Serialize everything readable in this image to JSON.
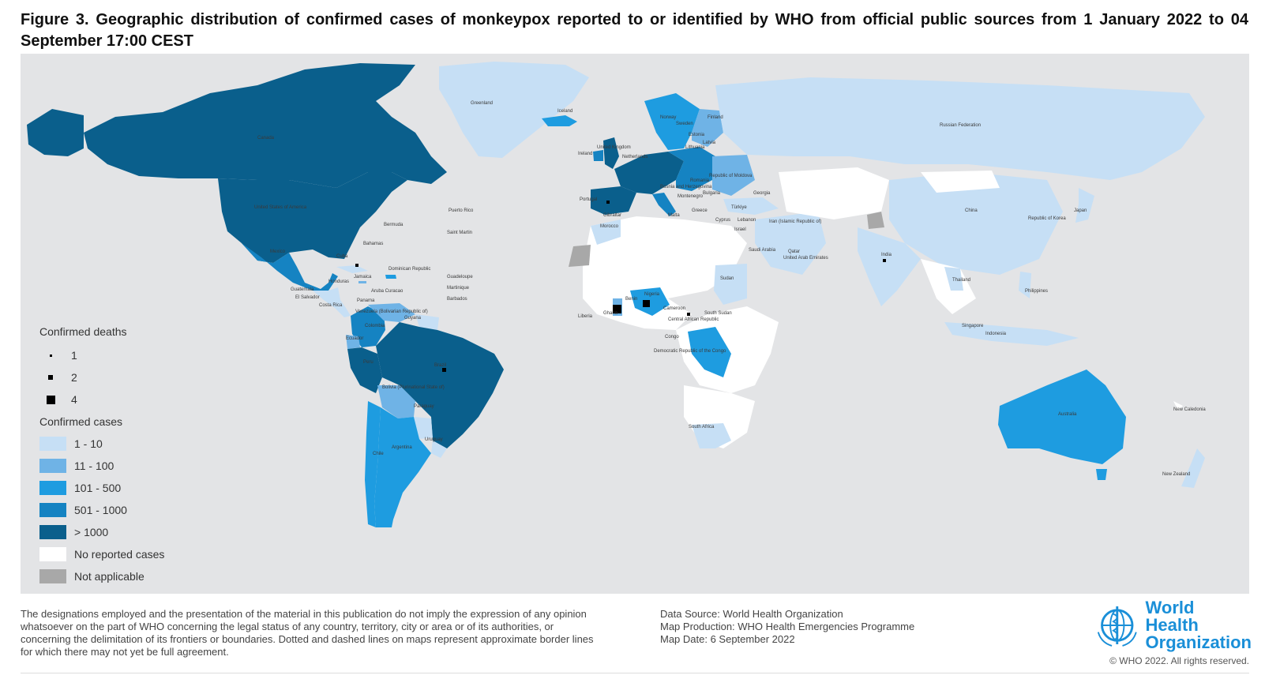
{
  "title": "Figure 3. Geographic distribution of confirmed cases of monkeypox reported to or identified by WHO from official public sources from 1 January 2022 to 04 September 17:00 CEST",
  "colors": {
    "ocean": "#e3e4e6",
    "no_cases": "#ffffff",
    "not_applicable": "#a8a8a8",
    "c1_10": "#c6dff5",
    "c11_100": "#6fb3e6",
    "c101_500": "#1e9ce0",
    "c501_1000": "#1583c2",
    "c_gt_1000": "#0a5f8c"
  },
  "legend": {
    "deaths_heading": "Confirmed deaths",
    "deaths": [
      {
        "label": "1",
        "size": "small"
      },
      {
        "label": "2",
        "size": "medium"
      },
      {
        "label": "4",
        "size": "large"
      }
    ],
    "cases_heading": "Confirmed cases",
    "cases": [
      {
        "label": "1 - 10",
        "color": "#c6dff5"
      },
      {
        "label": "11 - 100",
        "color": "#6fb3e6"
      },
      {
        "label": "101 - 500",
        "color": "#1e9ce0"
      },
      {
        "label": "501 - 1000",
        "color": "#1583c2"
      },
      {
        "label": "> 1000",
        "color": "#0a5f8c"
      },
      {
        "label": "No reported cases",
        "color": "#ffffff"
      },
      {
        "label": "Not applicable",
        "color": "#a8a8a8"
      }
    ]
  },
  "country_labels": {
    "greenland": "Greenland",
    "iceland": "Iceland",
    "canada": "Canada",
    "usa": "United States of America",
    "mexico": "Mexico",
    "bermuda": "Bermuda",
    "bahamas": "Bahamas",
    "cuba": "Cuba",
    "jamaica": "Jamaica",
    "dominican": "Dominican Republic",
    "puerto_rico": "Puerto Rico",
    "saint_martin": "Saint Martin",
    "guadeloupe": "Guadeloupe",
    "martinique": "Martinique",
    "barbados": "Barbados",
    "aruba": "Aruba Curacao",
    "honduras": "Honduras",
    "guatemala": "Guatemala",
    "el_salvador": "El Salvador",
    "costa_rica": "Costa Rica",
    "panama": "Panama",
    "venezuela": "Venezuela (Bolivarian Republic of)",
    "guyana": "Guyana",
    "colombia": "Colombia",
    "ecuador": "Ecuador",
    "peru": "Peru",
    "brazil": "Brazil",
    "bolivia": "Bolivia (Plurinational State of)",
    "paraguay": "Paraguay",
    "uruguay": "Uruguay",
    "argentina": "Argentina",
    "chile": "Chile",
    "norway": "Norway",
    "sweden": "Sweden",
    "finland": "Finland",
    "estonia": "Estonia",
    "latvia": "Latvia",
    "lithuania": "Lithuania",
    "uk": "United Kingdom",
    "ireland": "Ireland",
    "netherlands": "Netherlands",
    "portugal": "Portugal",
    "morocco": "Morocco",
    "gibraltar": "Gibraltar",
    "malta": "Malta",
    "greece": "Greece",
    "moldova": "Republic of Moldova",
    "bosnia": "Bosnia and Herzegovina",
    "bulgaria": "Bulgaria",
    "romania": "Romania",
    "montenegro": "Montenegro",
    "georgia": "Georgia",
    "turkiye": "Türkiye",
    "cyprus": "Cyprus",
    "lebanon": "Lebanon",
    "israel": "Israel",
    "iran": "Iran (Islamic Republic of)",
    "saudi": "Saudi Arabia",
    "qatar": "Qatar",
    "uae": "United Arab Emirates",
    "sudan": "Sudan",
    "south_sudan": "South Sudan",
    "car": "Central African Republic",
    "cameroon": "Cameroon",
    "ghana": "Ghana",
    "liberia": "Liberia",
    "benin": "Benin",
    "nigeria": "Nigeria",
    "congo": "Congo",
    "drc": "Democratic Republic of the Congo",
    "south_africa": "South Africa",
    "russia": "Russian Federation",
    "china": "China",
    "korea": "Republic of Korea",
    "japan": "Japan",
    "india": "India",
    "thailand": "Thailand",
    "philippines": "Philippines",
    "singapore": "Singapore",
    "indonesia": "Indonesia",
    "australia": "Australia",
    "new_caledonia": "New Caledonia",
    "new_zealand": "New Zealand"
  },
  "disclaimer": "The designations employed and the presentation of the material in this publication do not imply the expression of any opinion whatsoever on the part of WHO concerning the legal status of any country, territory, city or area or of its authorities, or concerning the delimitation of its frontiers or boundaries. Dotted and dashed lines on maps represent approximate border lines for which there may not yet be full agreement.",
  "source": {
    "data_source": "Data Source: World Health Organization",
    "map_production": "Map Production: WHO Health Emergencies Programme",
    "map_date": "Map Date: 6 September 2022"
  },
  "logo": {
    "line1": "World Health",
    "line2": "Organization",
    "emblem_icon": "who-emblem-icon"
  },
  "copyright": "© WHO 2022. All rights reserved."
}
